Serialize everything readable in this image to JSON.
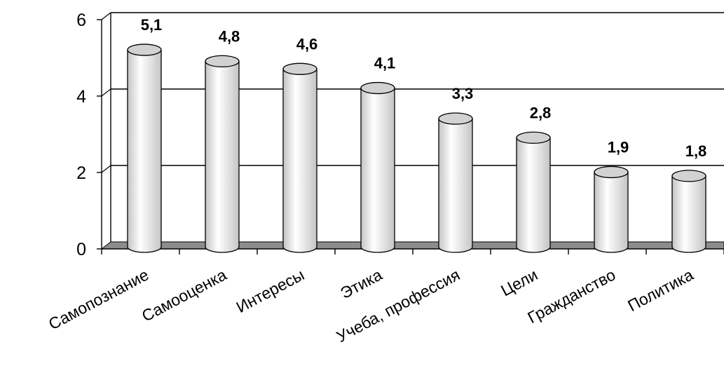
{
  "chart_data": {
    "type": "bar",
    "style": "3d-cylinder",
    "categories": [
      "Самопознание",
      "Самооценка",
      "Интересы",
      "Этика",
      "Учеба, профессия",
      "Цели",
      "Гражданство",
      "Политика"
    ],
    "values": [
      5.1,
      4.8,
      4.6,
      4.1,
      3.3,
      2.8,
      1.9,
      1.8
    ],
    "data_labels": [
      "5,1",
      "4,8",
      "4,6",
      "4,1",
      "3,3",
      "2,8",
      "1,9",
      "1,8"
    ],
    "yticks": [
      0,
      2,
      4,
      6
    ],
    "ytick_labels": [
      "0",
      "2",
      "4",
      "6"
    ],
    "ylim": [
      0,
      6
    ],
    "grid": true,
    "legend": "none",
    "colors": {
      "bar_fill_light": "#ffffff",
      "bar_fill_dark": "#c4c4c4",
      "bar_top": "#d2d2d2",
      "floor": "#8c8c8c",
      "gridline": "#000000"
    }
  }
}
